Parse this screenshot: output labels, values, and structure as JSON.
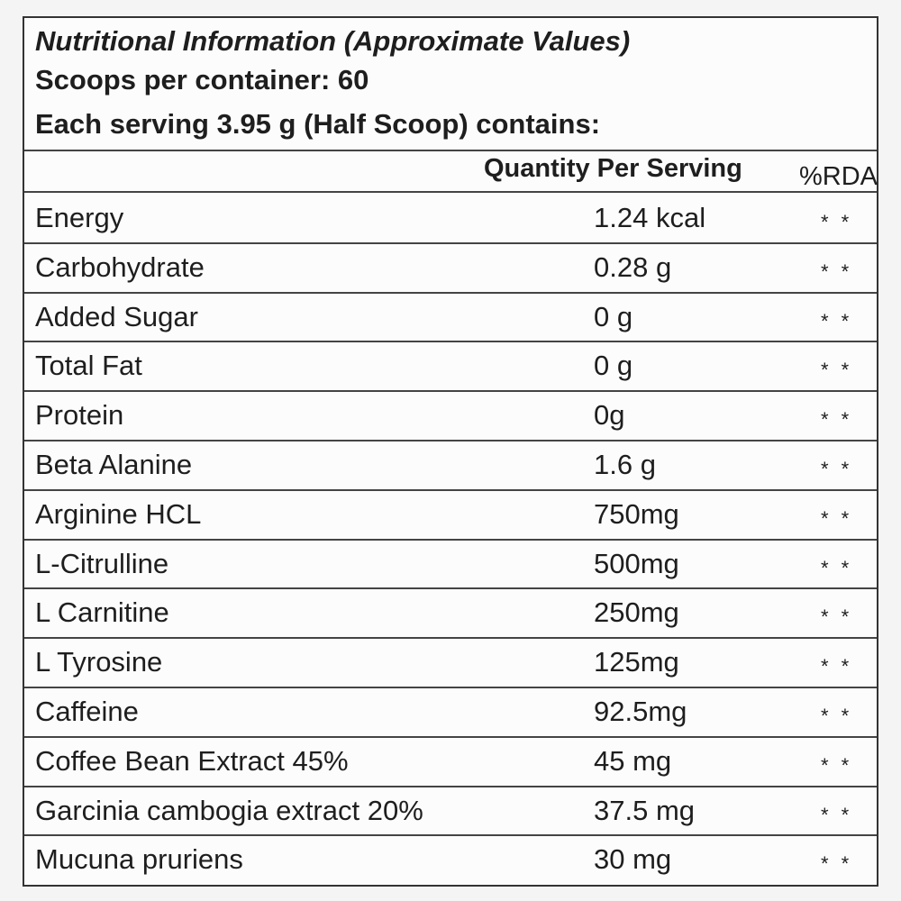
{
  "header": {
    "title": "Nutritional Information (Approximate Values)",
    "scoops": "Scoops per container: 60",
    "serving": "Each serving 3.95 g (Half Scoop) contains:"
  },
  "table": {
    "columns": [
      "",
      "Quantity Per Serving",
      "%RDA"
    ],
    "rows": [
      [
        "Energy",
        "1.24 kcal",
        "* *"
      ],
      [
        "Carbohydrate",
        "0.28 g",
        "* *"
      ],
      [
        "Added Sugar",
        "0 g",
        "* *"
      ],
      [
        "Total Fat",
        "0 g",
        "* *"
      ],
      [
        "Protein",
        "0g",
        "* *"
      ],
      [
        "Beta Alanine",
        "1.6 g",
        "* *"
      ],
      [
        "Arginine HCL",
        "750mg",
        "* *"
      ],
      [
        "L-Citrulline",
        "500mg",
        "* *"
      ],
      [
        "L Carnitine",
        "250mg",
        "* *"
      ],
      [
        "L Tyrosine",
        "125mg",
        "* *"
      ],
      [
        "Caffeine",
        "92.5mg",
        "* *"
      ],
      [
        "Coffee Bean Extract 45%",
        "45 mg",
        "* *"
      ],
      [
        "Garcinia cambogia extract 20%",
        "37.5 mg",
        "* *"
      ],
      [
        "Mucuna pruriens",
        "30 mg",
        "* *"
      ]
    ]
  }
}
